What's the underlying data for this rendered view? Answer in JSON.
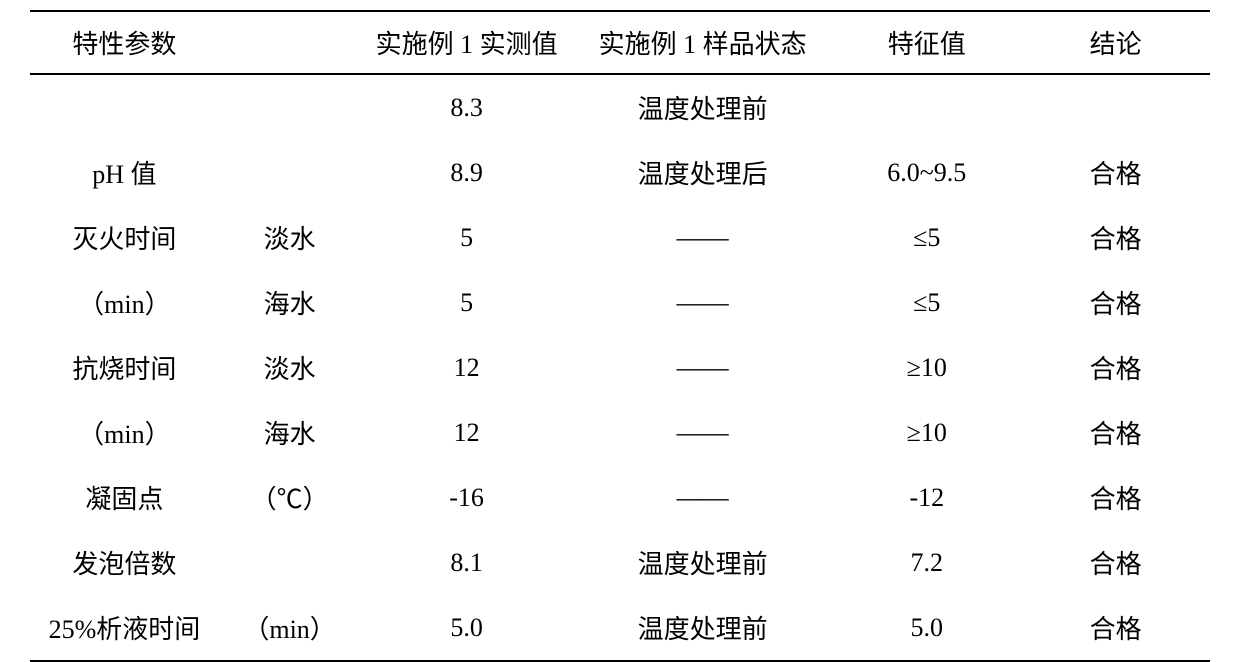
{
  "table": {
    "type": "table",
    "columns": {
      "param": "特性参数",
      "sub": "",
      "measured": "实施例 1 实测值",
      "state": "实施例 1 样品状态",
      "spec": "特征值",
      "conclusion": "结论"
    },
    "background_color": "#ffffff",
    "text_color": "#000000",
    "border_color": "#000000",
    "font_size_pt": 20,
    "col_widths": [
      "16%",
      "12%",
      "18%",
      "22%",
      "16%",
      "16%"
    ],
    "rows": [
      {
        "param": "",
        "sub": "",
        "measured": "8.3",
        "state": "温度处理前",
        "spec": "",
        "conclusion": ""
      },
      {
        "param": "pH 值",
        "sub": "",
        "measured": "8.9",
        "state": "温度处理后",
        "spec": "6.0~9.5",
        "conclusion": "合格"
      },
      {
        "param": "灭火时间",
        "sub": "淡水",
        "measured": "5",
        "state": "——",
        "spec": "≤5",
        "conclusion": "合格"
      },
      {
        "param": "（min）",
        "sub": "海水",
        "measured": "5",
        "state": "——",
        "spec": "≤5",
        "conclusion": "合格"
      },
      {
        "param": "抗烧时间",
        "sub": "淡水",
        "measured": "12",
        "state": "——",
        "spec": "≥10",
        "conclusion": "合格"
      },
      {
        "param": "（min）",
        "sub": "海水",
        "measured": "12",
        "state": "——",
        "spec": "≥10",
        "conclusion": "合格"
      },
      {
        "param": "凝固点",
        "sub": "（℃）",
        "measured": "-16",
        "state": "——",
        "spec": "-12",
        "conclusion": "合格"
      },
      {
        "param": "发泡倍数",
        "sub": "",
        "measured": "8.1",
        "state": "温度处理前",
        "spec": "7.2",
        "conclusion": "合格"
      },
      {
        "param": "25%析液时间",
        "sub": "（min）",
        "measured": "5.0",
        "state": "温度处理前",
        "spec": "5.0",
        "conclusion": "合格"
      }
    ]
  }
}
